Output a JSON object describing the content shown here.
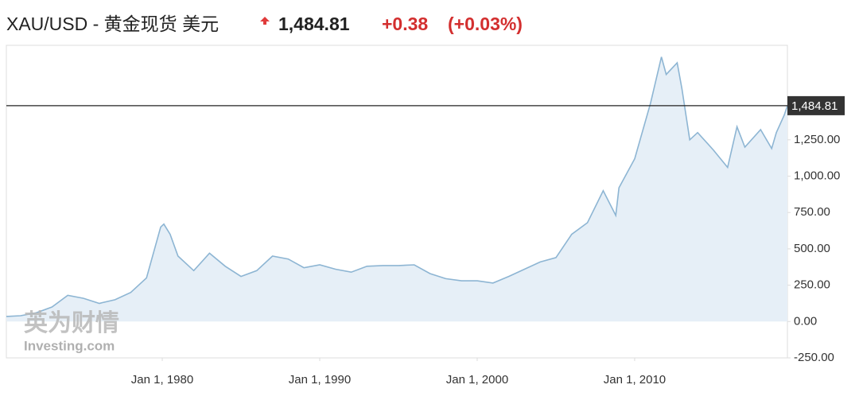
{
  "header": {
    "symbol": "XAU/USD - 黄金现货 美元",
    "change": "+0.38",
    "change_pct": "(+0.03%)"
  },
  "watermark": {
    "brand": "英为财情",
    "site": "Investing.com"
  },
  "chart_data": {
    "type": "area",
    "x": [
      1970.1,
      1971,
      1972,
      1973,
      1974,
      1975,
      1976,
      1977,
      1978,
      1979,
      1979.9,
      1980.1,
      1980.5,
      1981,
      1982,
      1983,
      1984,
      1985,
      1986,
      1987,
      1988,
      1989,
      1990,
      1991,
      1992,
      1993,
      1994,
      1995,
      1996,
      1997,
      1998,
      1999,
      2000,
      2001,
      2002,
      2003,
      2004,
      2005,
      2006,
      2007,
      2008,
      2008.8,
      2009,
      2010,
      2011,
      2011.7,
      2012,
      2012.7,
      2013,
      2013.5,
      2014,
      2015,
      2015.9,
      2016.5,
      2017,
      2018,
      2018.7,
      2019,
      2019.5,
      2019.7
    ],
    "series": [
      {
        "name": "XAU/USD",
        "color": "#8db5d3",
        "fill": "#e6eff7",
        "values": [
          35,
          40,
          60,
          100,
          180,
          160,
          125,
          150,
          200,
          300,
          650,
          670,
          600,
          450,
          350,
          470,
          380,
          310,
          350,
          450,
          430,
          370,
          390,
          360,
          340,
          380,
          385,
          385,
          390,
          330,
          295,
          280,
          280,
          265,
          310,
          360,
          410,
          440,
          600,
          680,
          900,
          730,
          920,
          1120,
          1500,
          1820,
          1700,
          1780,
          1600,
          1250,
          1300,
          1180,
          1060,
          1340,
          1200,
          1320,
          1190,
          1300,
          1420,
          1484.81
        ]
      }
    ],
    "xlim": [
      1970.1,
      2019.7
    ],
    "xticks": [
      {
        "value": 1980,
        "label": "Jan 1, 1980"
      },
      {
        "value": 1990,
        "label": "Jan 1, 1990"
      },
      {
        "value": 2000,
        "label": "Jan 1, 2000"
      },
      {
        "value": 2010,
        "label": "Jan 1, 2010"
      }
    ],
    "ylim": [
      -250,
      1900
    ],
    "yticks": [
      {
        "value": -250,
        "label": "-250.00"
      },
      {
        "value": 0,
        "label": "0.00"
      },
      {
        "value": 250,
        "label": "250.00"
      },
      {
        "value": 500,
        "label": "500.00"
      },
      {
        "value": 750,
        "label": "750.00"
      },
      {
        "value": 1000,
        "label": "1,000.00"
      },
      {
        "value": 1250,
        "label": "1,250.00"
      }
    ],
    "price_line": {
      "value": 1484.81,
      "label": "1,484.81"
    },
    "grid": false
  }
}
